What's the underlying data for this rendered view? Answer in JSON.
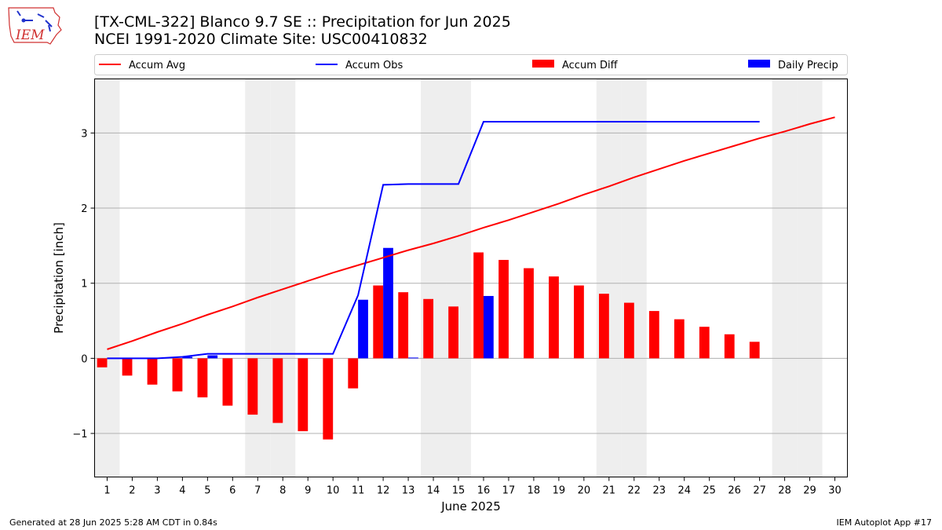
{
  "header": {
    "title_line1": "[TX-CML-322] Blanco 9.7 SE :: Precipitation for Jun 2025",
    "title_line2": "NCEI 1991-2020 Climate Site: USC00410832",
    "logo_text": "IEM"
  },
  "footer": {
    "generated": "Generated at 28 Jun 2025 5:28 AM CDT in 0.84s",
    "app": "IEM Autoplot App #17"
  },
  "colors": {
    "avg": "#ff0000",
    "obs": "#0000ff",
    "diff": "#ff0000",
    "daily": "#0000ff",
    "weekend": "#eeeeee",
    "grid": "#b0b0b0"
  },
  "chart_data": {
    "type": "bar",
    "xlabel": "June 2025",
    "ylabel": "Precipitation [inch]",
    "xlim": [
      0.5,
      30.5
    ],
    "ylim": [
      -1.58,
      3.72
    ],
    "yticks": [
      -1,
      0,
      1,
      2,
      3
    ],
    "ytick_labels": [
      "−1",
      "0",
      "1",
      "2",
      "3"
    ],
    "x": [
      1,
      2,
      3,
      4,
      5,
      6,
      7,
      8,
      9,
      10,
      11,
      12,
      13,
      14,
      15,
      16,
      17,
      18,
      19,
      20,
      21,
      22,
      23,
      24,
      25,
      26,
      27,
      28,
      29,
      30
    ],
    "weekend_days": [
      1,
      7,
      8,
      14,
      15,
      21,
      22,
      28,
      29
    ],
    "grid": true,
    "legend": {
      "placement": "top",
      "entries": [
        "Accum Avg",
        "Accum Obs",
        "Accum Diff",
        "Daily Precip"
      ]
    },
    "series": [
      {
        "name": "Accum Avg",
        "type": "line",
        "values": [
          0.12,
          0.23,
          0.35,
          0.46,
          0.58,
          0.69,
          0.81,
          0.92,
          1.03,
          1.14,
          1.24,
          1.34,
          1.44,
          1.53,
          1.63,
          1.74,
          1.84,
          1.95,
          2.06,
          2.18,
          2.29,
          2.41,
          2.52,
          2.63,
          2.73,
          2.83,
          2.93,
          3.02,
          3.12,
          3.21
        ]
      },
      {
        "name": "Accum Obs",
        "type": "line",
        "x": [
          1,
          2,
          3,
          4,
          5,
          6,
          7,
          8,
          9,
          10,
          11,
          12,
          13,
          14,
          15,
          16,
          17,
          18,
          19,
          20,
          21,
          22,
          23,
          24,
          25,
          26,
          27
        ],
        "values": [
          0,
          0,
          0,
          0.02,
          0.06,
          0.06,
          0.06,
          0.06,
          0.06,
          0.06,
          0.84,
          2.31,
          2.32,
          2.32,
          2.32,
          3.15,
          3.15,
          3.15,
          3.15,
          3.15,
          3.15,
          3.15,
          3.15,
          3.15,
          3.15,
          3.15,
          3.15
        ]
      },
      {
        "name": "Accum Diff",
        "type": "bar",
        "x": [
          1,
          2,
          3,
          4,
          5,
          6,
          7,
          8,
          9,
          10,
          11,
          12,
          13,
          14,
          15,
          16,
          17,
          18,
          19,
          20,
          21,
          22,
          23,
          24,
          25,
          26,
          27
        ],
        "values": [
          -0.12,
          -0.23,
          -0.35,
          -0.44,
          -0.52,
          -0.63,
          -0.75,
          -0.86,
          -0.97,
          -1.08,
          -0.4,
          0.97,
          0.88,
          0.79,
          0.69,
          1.41,
          1.31,
          1.2,
          1.09,
          0.97,
          0.86,
          0.74,
          0.63,
          0.52,
          0.42,
          0.32,
          0.22
        ]
      },
      {
        "name": "Daily Precip",
        "type": "bar",
        "x": [
          1,
          2,
          3,
          4,
          5,
          6,
          7,
          8,
          9,
          10,
          11,
          12,
          13,
          14,
          15,
          16,
          17,
          18,
          19,
          20,
          21,
          22,
          23,
          24,
          25,
          26,
          27
        ],
        "values": [
          0,
          0,
          0,
          0.02,
          0.04,
          0,
          0,
          0,
          0,
          0,
          0.78,
          1.47,
          0.01,
          0,
          0,
          0.83,
          0,
          0,
          0,
          0,
          0,
          0,
          0,
          0,
          0,
          0,
          0
        ]
      }
    ]
  }
}
